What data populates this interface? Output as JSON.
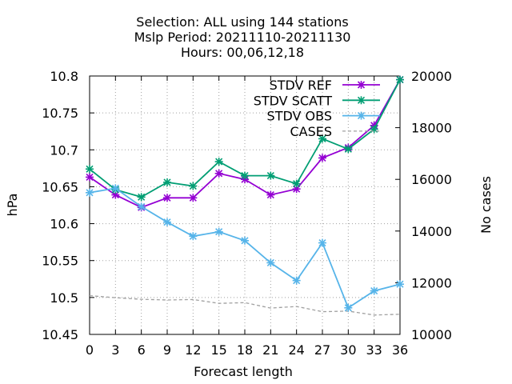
{
  "chart_data": {
    "type": "line",
    "title_lines": [
      "Selection: ALL using   144 stations",
      "Mslp   Period: 20211110-20211130",
      "Hours:  00,06,12,18"
    ],
    "xlabel": "Forecast length",
    "ylabel": "hPa",
    "y2label": "No cases",
    "x": [
      0,
      3,
      6,
      9,
      12,
      15,
      18,
      21,
      24,
      27,
      30,
      33,
      36
    ],
    "xlim": [
      0,
      36
    ],
    "ylim": [
      10.45,
      10.8
    ],
    "y2lim": [
      10000,
      20000
    ],
    "x_ticks": [
      "0",
      "3",
      "6",
      "9",
      "12",
      "15",
      "18",
      "21",
      "24",
      "27",
      "30",
      "33",
      "36"
    ],
    "y_ticks": [
      "10.45",
      "10.5",
      "10.55",
      "10.6",
      "10.65",
      "10.7",
      "10.75",
      "10.8"
    ],
    "y2_ticks": [
      "10000",
      "12000",
      "14000",
      "16000",
      "18000",
      "20000"
    ],
    "grid": true,
    "legend_position": "top-right",
    "series": [
      {
        "name": "STDV REF",
        "axis": "y",
        "color": "#9400d3",
        "values": [
          10.663,
          10.639,
          10.622,
          10.635,
          10.635,
          10.668,
          10.66,
          10.639,
          10.647,
          10.689,
          10.703,
          10.733,
          10.795
        ]
      },
      {
        "name": "STDV SCATT",
        "axis": "y",
        "color": "#009e73",
        "values": [
          10.674,
          10.646,
          10.636,
          10.656,
          10.651,
          10.684,
          10.665,
          10.665,
          10.654,
          10.715,
          10.701,
          10.728,
          10.795
        ]
      },
      {
        "name": "STDV OBS",
        "axis": "y",
        "color": "#56b4e9",
        "values": [
          10.642,
          10.648,
          10.623,
          10.602,
          10.583,
          10.589,
          10.577,
          10.547,
          10.523,
          10.574,
          10.486,
          10.509,
          10.518
        ]
      },
      {
        "name": "CASES",
        "axis": "y2",
        "color": "#a0a0a0",
        "dashed": true,
        "values": [
          11500,
          11420,
          11360,
          11330,
          11350,
          11200,
          11230,
          11020,
          11080,
          10880,
          10900,
          10750,
          10780
        ]
      }
    ]
  }
}
